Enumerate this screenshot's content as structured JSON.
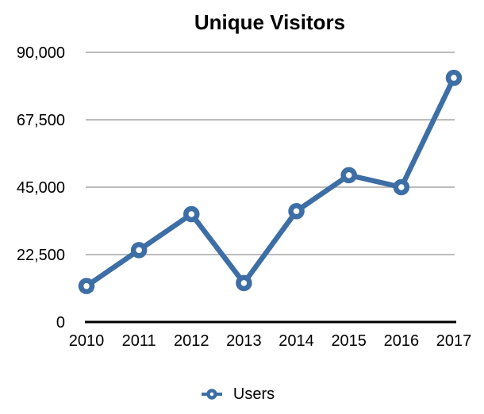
{
  "chart_data": {
    "type": "line",
    "title": "Unique Visitors",
    "categories": [
      "2010",
      "2011",
      "2012",
      "2013",
      "2014",
      "2015",
      "2016",
      "2017"
    ],
    "series": [
      {
        "name": "Users",
        "color": "#3D6EA5",
        "values": [
          12000,
          24000,
          36000,
          13000,
          37000,
          49000,
          45000,
          81500
        ]
      }
    ],
    "xlabel": "",
    "ylabel": "",
    "ylim": [
      0,
      90000
    ],
    "yticks": [
      90000,
      67500,
      45000,
      22500,
      0
    ],
    "ytick_labels": [
      "90,000",
      "67,500",
      "45,000",
      "22,500",
      "0"
    ],
    "grid": true,
    "grid_color": "#A5A5A5",
    "axis_color": "#000000",
    "text_color": "#000000",
    "marker": "open-circle",
    "legend_position": "bottom"
  }
}
